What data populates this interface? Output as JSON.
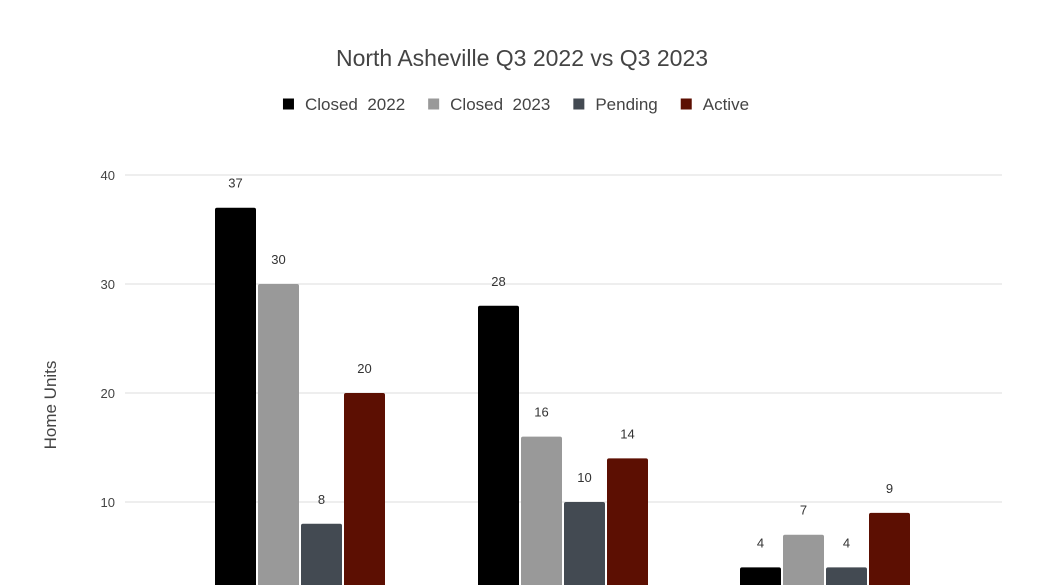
{
  "chart_data": {
    "type": "bar",
    "title": "North Asheville Q3 2022 vs Q3 2023",
    "xlabel": "",
    "ylabel": "Home Units",
    "ylim": [
      0,
      40
    ],
    "yticks": [
      10,
      20,
      30,
      40
    ],
    "grid": true,
    "legend_position": "top",
    "categories": [
      "",
      "",
      ""
    ],
    "series": [
      {
        "name": "Closed  2022",
        "color": "#000000",
        "values": [
          37,
          28,
          4
        ]
      },
      {
        "name": "Closed  2023",
        "color": "#999999",
        "values": [
          30,
          16,
          7
        ]
      },
      {
        "name": "Pending",
        "color": "#434a52",
        "values": [
          8,
          10,
          4
        ]
      },
      {
        "name": "Active",
        "color": "#5c0f02",
        "values": [
          20,
          14,
          9
        ]
      }
    ]
  }
}
